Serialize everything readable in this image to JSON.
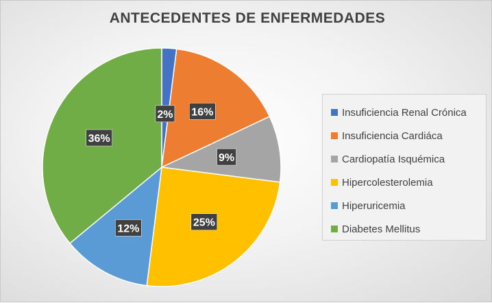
{
  "chart_data": {
    "type": "pie",
    "title": "ANTECEDENTES DE ENFERMEDADES",
    "categories": [
      "Insuficiencia Renal Crónica",
      "Insuficiencia Cardiáca",
      "Cardiopatía Isquémica",
      "Hipercolesterolemia",
      "Hiperuricemia",
      "Diabetes Mellitus"
    ],
    "values": [
      2,
      16,
      9,
      25,
      12,
      36
    ],
    "data_labels": [
      "2%",
      "16%",
      "9%",
      "25%",
      "12%",
      "36%"
    ],
    "colors": [
      "#4472C4",
      "#ED7D31",
      "#A5A5A5",
      "#FFC000",
      "#5B9BD5",
      "#70AD47"
    ],
    "legend_position": "right"
  }
}
